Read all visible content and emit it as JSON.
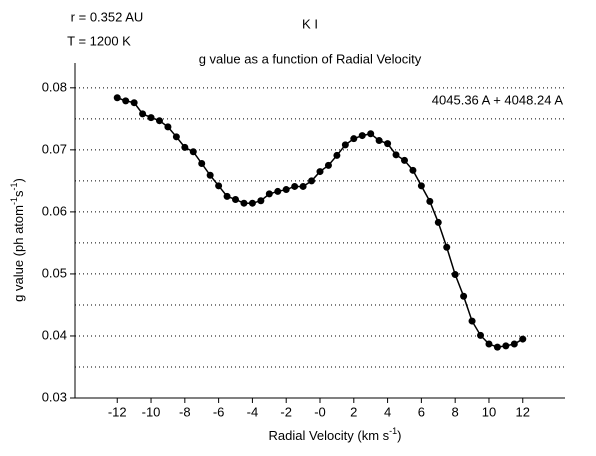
{
  "chart_data": {
    "type": "line",
    "title": "g value as a function of Radial Velocity",
    "species": "K I",
    "notes": [
      "r = 0.352 AU",
      "T = 1200 K"
    ],
    "annotation": "4045.36 A + 4048.24 A",
    "x_label": [
      "Radial Velocity (km s",
      "-1",
      ")"
    ],
    "y_label": [
      "g value (ph atom",
      "-1",
      "s",
      "-1",
      ")"
    ],
    "x": [
      -12,
      -11.5,
      -11,
      -10.5,
      -10,
      -9.5,
      -9,
      -8.5,
      -8,
      -7.5,
      -7,
      -6.5,
      -6,
      -5.5,
      -5,
      -4.5,
      -4,
      -3.5,
      -3,
      -2.5,
      -2,
      -1.5,
      -1,
      -0.5,
      0,
      0.5,
      1,
      1.5,
      2,
      2.5,
      3,
      3.5,
      4,
      4.5,
      5,
      5.5,
      6,
      6.5,
      7,
      7.5,
      8,
      8.5,
      9,
      9.5,
      10,
      10.5,
      11,
      11.5,
      12
    ],
    "series": [
      {
        "color": "#000000",
        "values": [
          0.0784,
          0.0779,
          0.0776,
          0.0758,
          0.0752,
          0.0747,
          0.0737,
          0.0721,
          0.0704,
          0.0697,
          0.0678,
          0.0659,
          0.0642,
          0.0625,
          0.062,
          0.0614,
          0.0614,
          0.0618,
          0.0629,
          0.0633,
          0.0636,
          0.0641,
          0.0641,
          0.065,
          0.0665,
          0.0675,
          0.0691,
          0.0708,
          0.0718,
          0.0723,
          0.0726,
          0.0715,
          0.071,
          0.0692,
          0.0683,
          0.0667,
          0.0642,
          0.0617,
          0.0583,
          0.0543,
          0.0499,
          0.0464,
          0.0424,
          0.0401,
          0.0387,
          0.0382,
          0.0384,
          0.0387,
          0.0395
        ]
      }
    ],
    "xlim": [
      -14.5,
      14.5
    ],
    "xticks": [
      -12,
      -10,
      -8,
      -6,
      -4,
      -2,
      {
        "value": 0,
        "label": "-0"
      },
      2,
      4,
      6,
      8,
      10,
      12
    ],
    "ylim": [
      0.03,
      0.084
    ],
    "yticks": [
      0.03,
      0.04,
      0.05,
      0.06,
      0.07,
      0.08
    ],
    "ygrid": [
      0.035,
      0.04,
      0.045,
      0.05,
      0.055,
      0.06,
      0.065,
      0.07,
      0.075,
      0.08
    ],
    "grid": true
  }
}
